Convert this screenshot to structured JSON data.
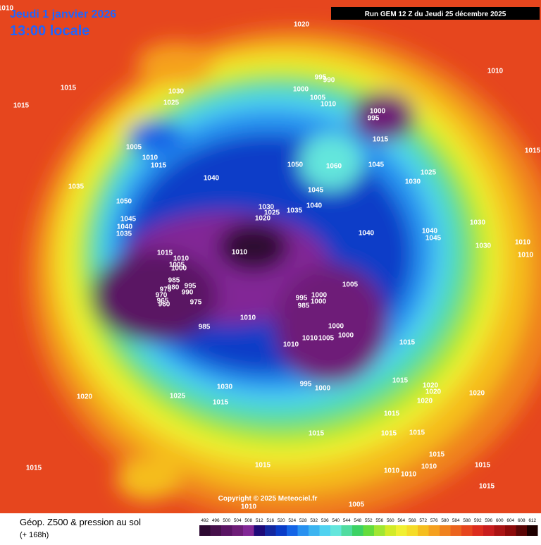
{
  "header": {
    "date": "Jeudi 1 janvier 2026",
    "time": "13:00 locale",
    "run": "Run GEM 12 Z du Jeudi 25 décembre 2025"
  },
  "copyright": "Copyright © 2025 Meteociel.fr",
  "footer": {
    "title": "Géop. Z500 & pression au sol",
    "lead": "(+ 168h)"
  },
  "legend": {
    "levels": [
      492,
      496,
      500,
      504,
      508,
      512,
      516,
      520,
      524,
      528,
      532,
      536,
      540,
      544,
      548,
      552,
      556,
      560,
      564,
      568,
      572,
      576,
      580,
      584,
      588,
      592,
      596,
      600,
      604,
      608,
      612
    ],
    "colors": [
      "#2d0a32",
      "#46104b",
      "#5a1464",
      "#6e1e78",
      "#822896",
      "#1e0a78",
      "#1428a0",
      "#0a3cc8",
      "#1464e6",
      "#2891f0",
      "#3cb4f0",
      "#50d2f0",
      "#64e6dc",
      "#50dca0",
      "#3cd264",
      "#64dc3c",
      "#a0e632",
      "#d2eb28",
      "#f0f032",
      "#f5dc28",
      "#f5be1e",
      "#f5a01e",
      "#f0821e",
      "#eb641e",
      "#e6461e",
      "#dc2d1e",
      "#c81e1e",
      "#aa1414",
      "#8c0a0a",
      "#5a0505",
      "#1e0000"
    ]
  },
  "isobar_labels": [
    "1010",
    "1020",
    "1015",
    "1015",
    "1030",
    "1025",
    "995",
    "990",
    "1000",
    "1005",
    "1010",
    "1010",
    "1000",
    "995",
    "1015",
    "1015",
    "1005",
    "1010",
    "1015",
    "1035",
    "1040",
    "1050",
    "1060",
    "1045",
    "1025",
    "1030",
    "1045",
    "1050",
    "1040",
    "1030",
    "1025",
    "1035",
    "1020",
    "1045",
    "1040",
    "1035",
    "1040",
    "1040",
    "1045",
    "1030",
    "1030",
    "1010",
    "1010",
    "1010",
    "1015",
    "1010",
    "1005",
    "1000",
    "985",
    "995",
    "980",
    "990",
    "975",
    "970",
    "965",
    "960",
    "975",
    "1005",
    "995",
    "1000",
    "985",
    "1000",
    "1010",
    "985",
    "1000",
    "1000",
    "1010",
    "1010",
    "1005",
    "1015",
    "995",
    "1000",
    "1015",
    "1020",
    "1020",
    "1020",
    "1025",
    "1030",
    "1015",
    "1020",
    "1020",
    "1015",
    "1015",
    "1015",
    "1015",
    "1015",
    "1015",
    "1015",
    "1010",
    "1015",
    "1010",
    "1010",
    "1015",
    "1010",
    "1005"
  ]
}
